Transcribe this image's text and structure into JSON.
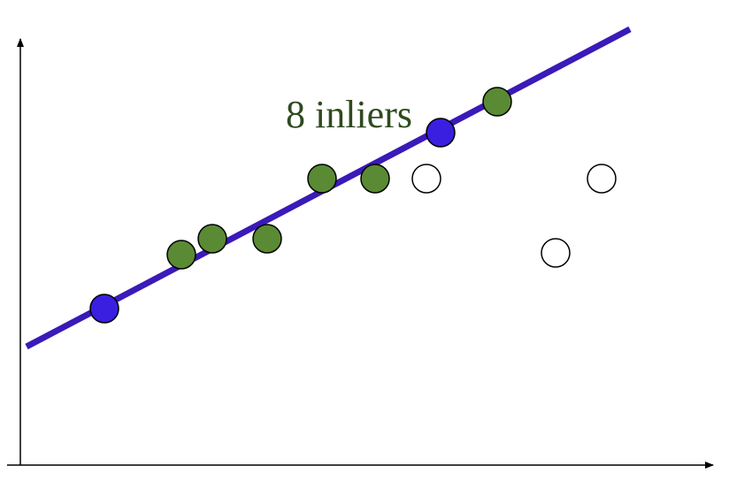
{
  "annotation": {
    "text": "8 inliers"
  },
  "colors": {
    "axis": "#000000",
    "fit_line": "#3a1ab8",
    "sample_point": "#3b1fe0",
    "inlier_point": "#5a8a33",
    "outlier_fill": "#ffffff",
    "point_stroke": "#000000",
    "annotation": "#2f4a1f"
  },
  "point_types": {
    "sample": "sample-point",
    "inlier": "inlier-point",
    "outlier": "outlier-point"
  }
}
